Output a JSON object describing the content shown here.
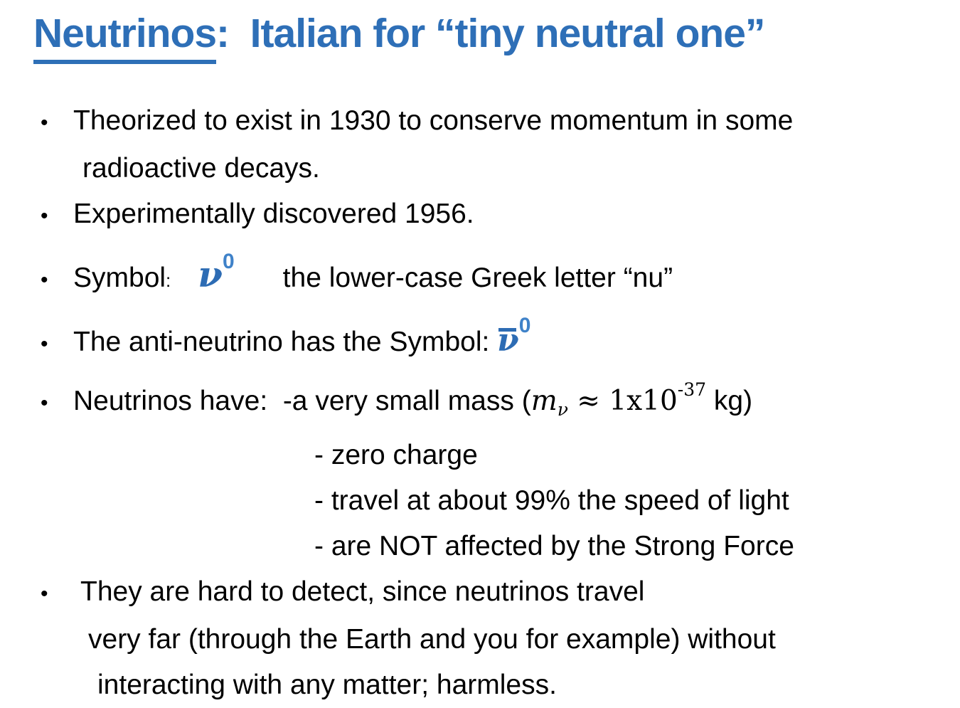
{
  "colors": {
    "accent": "#2e6fb7",
    "nu": "#2d6cb4",
    "nuzero": "#3f82c9",
    "text": "#000000"
  },
  "title": {
    "underlined": "Neutrinos",
    "rest": ":  Italian for “tiny neutral one”"
  },
  "bullet_char": "•",
  "bullets": {
    "b1": {
      "line1": "Theorized to exist in 1930 to conserve momentum in some",
      "line2": "radioactive decays."
    },
    "b2": {
      "text": "Experimentally discovered 1956."
    },
    "b3": {
      "label": "Symbol",
      "colon": ":",
      "nu": "ν",
      "sup": "0",
      "rest": "the lower-case Greek letter “nu”"
    },
    "b4": {
      "text": "The anti-neutrino has the Symbol: ",
      "nu": "ν",
      "sup": "0"
    },
    "b5": {
      "pre": "Neutrinos have:  -a very small mass (",
      "m": "m",
      "sub": "ν",
      "approx": " ≈ 1x10",
      "sup": "-37",
      "post": " kg)",
      "dash2": "- zero charge",
      "dash3": "- travel at about 99% the speed of light",
      "dash4": "- are NOT affected by the Strong Force"
    },
    "b6": {
      "line1": "They are hard to detect, since neutrinos travel",
      "line2": "very far (through the Earth and you for example) without",
      "line3": "interacting with any matter; harmless."
    }
  }
}
